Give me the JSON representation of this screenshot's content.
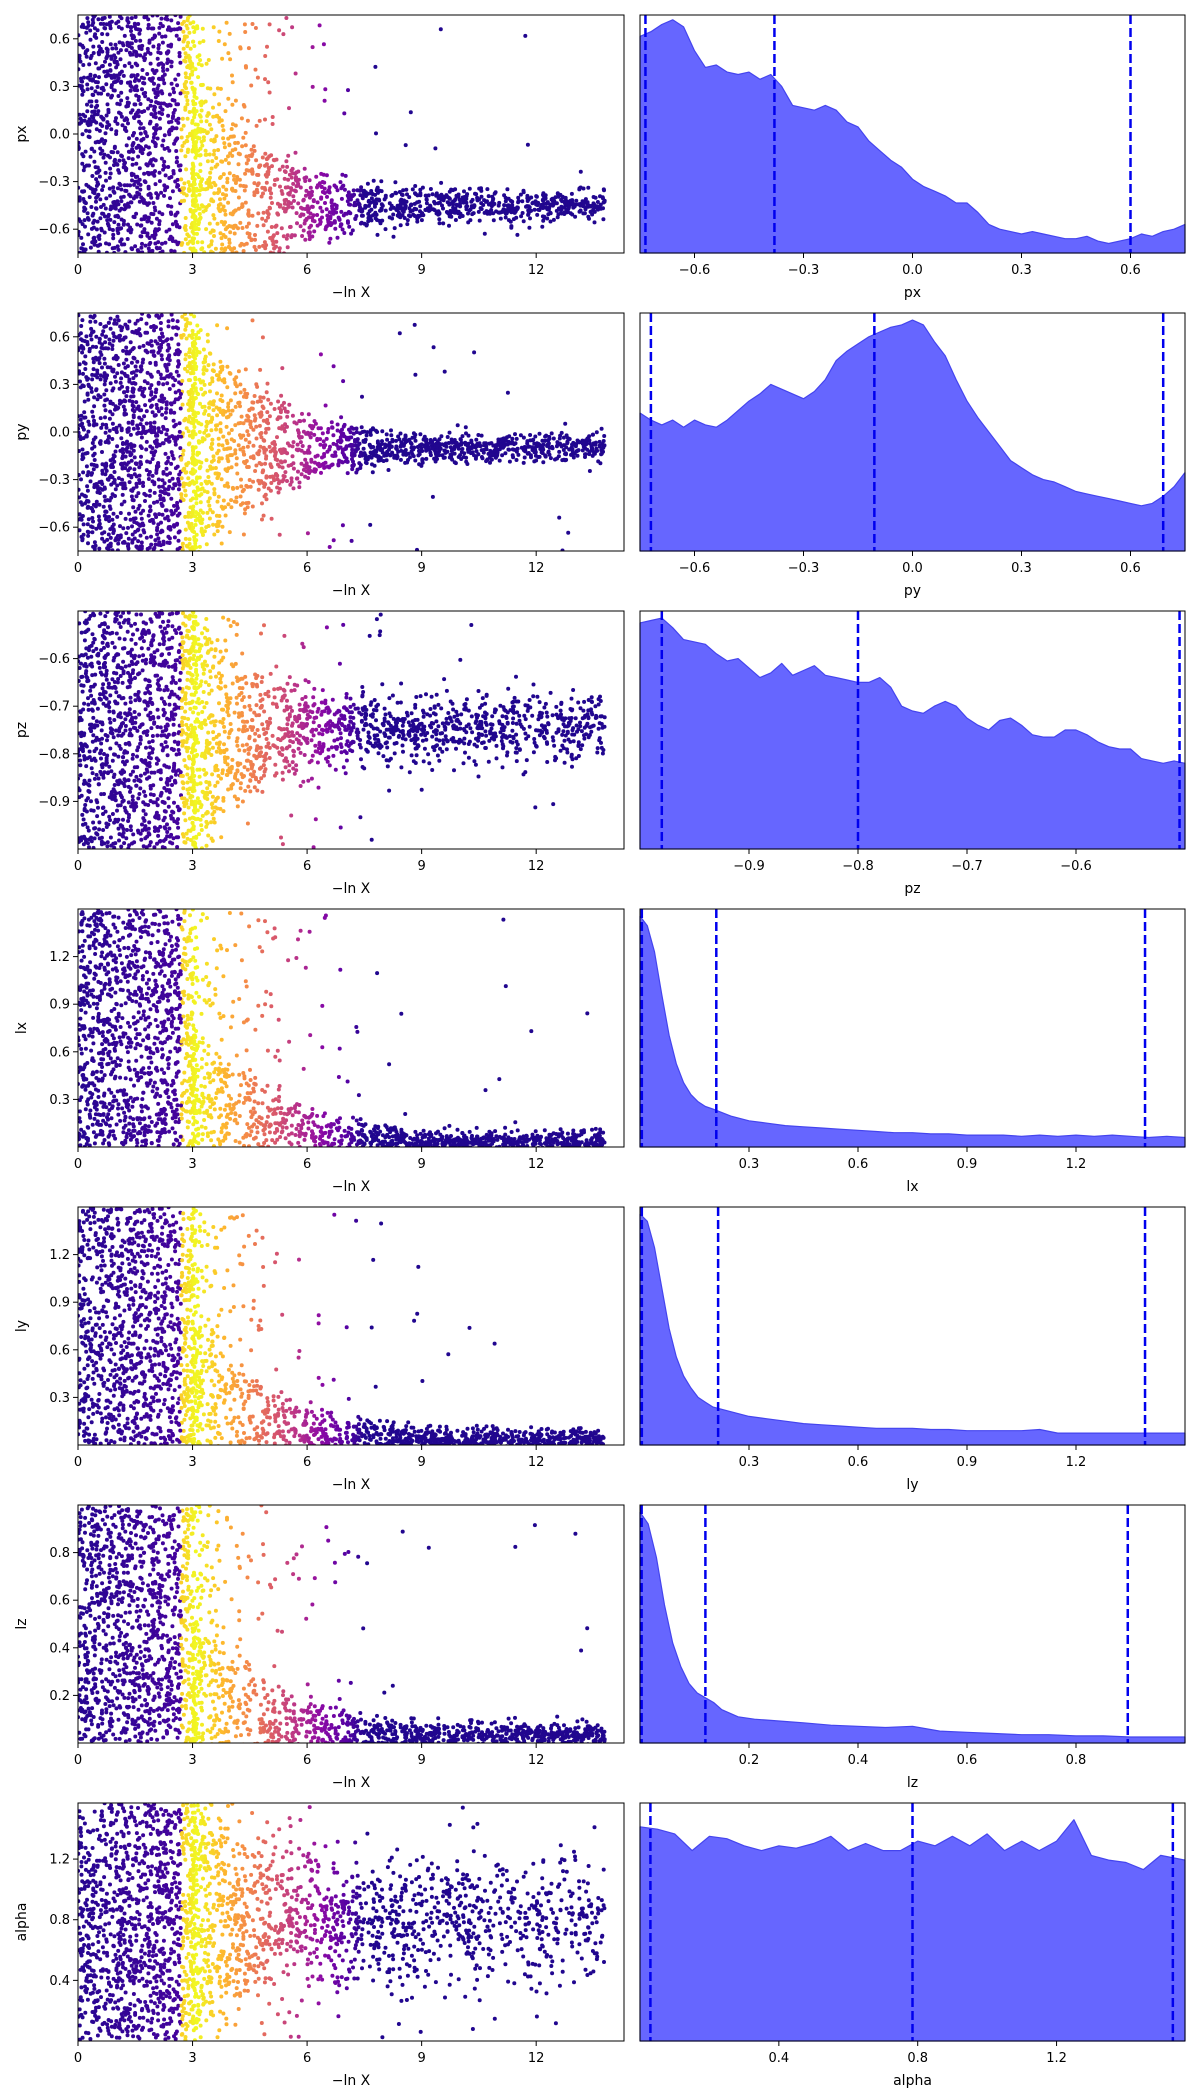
{
  "figure": {
    "description_free": true
  },
  "chart_data": [
    {
      "type": "scatter",
      "param": "px",
      "xlabel": "−ln X",
      "ylabel": "px",
      "xlim": [
        0,
        14.3
      ],
      "ylim": [
        -0.75,
        0.75
      ],
      "xticks": [
        0,
        3,
        6,
        9,
        12
      ],
      "yticks": [
        -0.6,
        -0.3,
        0.0,
        0.3,
        0.6
      ],
      "ytick_labels": [
        "−0.6",
        "−0.3",
        "0.0",
        "0.3",
        "0.6"
      ],
      "colormap": "plasma",
      "posterior_center": -0.45,
      "posterior_width": 0.2,
      "sample_density": "dense"
    },
    {
      "type": "area",
      "param": "px",
      "xlabel": "px",
      "xlim": [
        -0.75,
        0.75
      ],
      "xticks": [
        -0.6,
        -0.3,
        0.0,
        0.3,
        0.6
      ],
      "xtick_labels": [
        "−0.6",
        "−0.3",
        "0.0",
        "0.3",
        "0.6"
      ],
      "fill_color": "#6666ff",
      "line_color": "#4444ee",
      "quantile_color": "#0000ee",
      "quantile_lines": [
        -0.735,
        -0.38,
        0.6
      ],
      "density": {
        "x": [
          -0.75,
          -0.72,
          -0.69,
          -0.66,
          -0.63,
          -0.6,
          -0.57,
          -0.54,
          -0.51,
          -0.48,
          -0.45,
          -0.42,
          -0.39,
          -0.36,
          -0.33,
          -0.3,
          -0.27,
          -0.24,
          -0.21,
          -0.18,
          -0.15,
          -0.12,
          -0.09,
          -0.06,
          -0.03,
          0.0,
          0.03,
          0.06,
          0.09,
          0.12,
          0.15,
          0.18,
          0.21,
          0.24,
          0.27,
          0.3,
          0.33,
          0.36,
          0.39,
          0.42,
          0.45,
          0.48,
          0.51,
          0.54,
          0.57,
          0.6,
          0.63,
          0.66,
          0.69,
          0.72,
          0.75
        ],
        "y": [
          0.91,
          0.93,
          0.96,
          0.98,
          0.95,
          0.85,
          0.78,
          0.79,
          0.76,
          0.75,
          0.76,
          0.73,
          0.75,
          0.7,
          0.62,
          0.61,
          0.6,
          0.62,
          0.6,
          0.55,
          0.53,
          0.47,
          0.43,
          0.39,
          0.36,
          0.31,
          0.28,
          0.26,
          0.24,
          0.21,
          0.21,
          0.17,
          0.12,
          0.1,
          0.09,
          0.08,
          0.09,
          0.08,
          0.07,
          0.06,
          0.06,
          0.07,
          0.05,
          0.04,
          0.05,
          0.06,
          0.08,
          0.07,
          0.09,
          0.1,
          0.12
        ]
      }
    },
    {
      "type": "scatter",
      "param": "py",
      "xlabel": "−ln X",
      "ylabel": "py",
      "xlim": [
        0,
        14.3
      ],
      "ylim": [
        -0.75,
        0.75
      ],
      "xticks": [
        0,
        3,
        6,
        9,
        12
      ],
      "yticks": [
        -0.6,
        -0.3,
        0.0,
        0.3,
        0.6
      ],
      "ytick_labels": [
        "−0.6",
        "−0.3",
        "0.0",
        "0.3",
        "0.6"
      ],
      "colormap": "plasma",
      "posterior_center": -0.1,
      "posterior_width": 0.16,
      "sample_density": "dense"
    },
    {
      "type": "area",
      "param": "py",
      "xlabel": "py",
      "xlim": [
        -0.75,
        0.75
      ],
      "xticks": [
        -0.6,
        -0.3,
        0.0,
        0.3,
        0.6
      ],
      "xtick_labels": [
        "−0.6",
        "−0.3",
        "0.0",
        "0.3",
        "0.6"
      ],
      "fill_color": "#6666ff",
      "line_color": "#4444ee",
      "quantile_color": "#0000ee",
      "quantile_lines": [
        -0.72,
        -0.105,
        0.69
      ],
      "density": {
        "x": [
          -0.75,
          -0.72,
          -0.69,
          -0.66,
          -0.63,
          -0.6,
          -0.57,
          -0.54,
          -0.51,
          -0.48,
          -0.45,
          -0.42,
          -0.39,
          -0.36,
          -0.33,
          -0.3,
          -0.27,
          -0.24,
          -0.21,
          -0.18,
          -0.15,
          -0.12,
          -0.09,
          -0.06,
          -0.03,
          0.0,
          0.03,
          0.06,
          0.09,
          0.12,
          0.15,
          0.18,
          0.21,
          0.24,
          0.27,
          0.3,
          0.33,
          0.36,
          0.39,
          0.42,
          0.45,
          0.48,
          0.51,
          0.54,
          0.57,
          0.6,
          0.63,
          0.66,
          0.69,
          0.72,
          0.75
        ],
        "y": [
          0.58,
          0.55,
          0.53,
          0.55,
          0.52,
          0.55,
          0.53,
          0.52,
          0.55,
          0.59,
          0.63,
          0.66,
          0.7,
          0.68,
          0.66,
          0.64,
          0.67,
          0.72,
          0.8,
          0.84,
          0.87,
          0.9,
          0.92,
          0.94,
          0.95,
          0.97,
          0.95,
          0.88,
          0.82,
          0.72,
          0.63,
          0.56,
          0.5,
          0.44,
          0.38,
          0.35,
          0.32,
          0.3,
          0.29,
          0.27,
          0.25,
          0.24,
          0.23,
          0.22,
          0.21,
          0.2,
          0.19,
          0.2,
          0.23,
          0.27,
          0.33
        ]
      }
    },
    {
      "type": "scatter",
      "param": "pz",
      "xlabel": "−ln X",
      "ylabel": "pz",
      "xlim": [
        0,
        14.3
      ],
      "ylim": [
        -1.0,
        -0.5
      ],
      "xticks": [
        0,
        3,
        6,
        9,
        12
      ],
      "yticks": [
        -0.9,
        -0.8,
        -0.7,
        -0.6
      ],
      "ytick_labels": [
        "−0.9",
        "−0.8",
        "−0.7",
        "−0.6"
      ],
      "colormap": "plasma",
      "posterior_center": -0.75,
      "posterior_width": 0.15,
      "sample_density": "dense"
    },
    {
      "type": "area",
      "param": "pz",
      "xlabel": "pz",
      "xlim": [
        -1.0,
        -0.5
      ],
      "xticks": [
        -0.9,
        -0.8,
        -0.7,
        -0.6
      ],
      "xtick_labels": [
        "−0.9",
        "−0.8",
        "−0.7",
        "−0.6"
      ],
      "fill_color": "#6666ff",
      "line_color": "#4444ee",
      "quantile_color": "#0000ee",
      "quantile_lines": [
        -0.98,
        -0.8,
        -0.505
      ],
      "density": {
        "x": [
          -1.0,
          -0.99,
          -0.98,
          -0.97,
          -0.96,
          -0.95,
          -0.94,
          -0.93,
          -0.92,
          -0.91,
          -0.9,
          -0.89,
          -0.88,
          -0.87,
          -0.86,
          -0.85,
          -0.84,
          -0.83,
          -0.82,
          -0.81,
          -0.8,
          -0.79,
          -0.78,
          -0.77,
          -0.76,
          -0.75,
          -0.74,
          -0.73,
          -0.72,
          -0.71,
          -0.7,
          -0.69,
          -0.68,
          -0.67,
          -0.66,
          -0.65,
          -0.64,
          -0.63,
          -0.62,
          -0.61,
          -0.6,
          -0.59,
          -0.58,
          -0.57,
          -0.56,
          -0.55,
          -0.54,
          -0.53,
          -0.52,
          -0.51,
          -0.5
        ],
        "y": [
          0.95,
          0.96,
          0.97,
          0.93,
          0.88,
          0.87,
          0.86,
          0.82,
          0.79,
          0.8,
          0.76,
          0.72,
          0.74,
          0.78,
          0.73,
          0.75,
          0.77,
          0.73,
          0.72,
          0.71,
          0.7,
          0.7,
          0.72,
          0.68,
          0.6,
          0.58,
          0.57,
          0.6,
          0.62,
          0.6,
          0.55,
          0.52,
          0.5,
          0.54,
          0.55,
          0.52,
          0.48,
          0.47,
          0.47,
          0.5,
          0.5,
          0.48,
          0.45,
          0.43,
          0.42,
          0.42,
          0.38,
          0.37,
          0.36,
          0.37,
          0.36
        ]
      }
    },
    {
      "type": "scatter",
      "param": "lx",
      "xlabel": "−ln X",
      "ylabel": "lx",
      "xlim": [
        0,
        14.3
      ],
      "ylim": [
        0.0,
        1.5
      ],
      "xticks": [
        0,
        3,
        6,
        9,
        12
      ],
      "yticks": [
        0.3,
        0.6,
        0.9,
        1.2
      ],
      "ytick_labels": [
        "0.3",
        "0.6",
        "0.9",
        "1.2"
      ],
      "colormap": "plasma",
      "posterior_center": 0.03,
      "posterior_width": 0.12,
      "sample_density": "dense"
    },
    {
      "type": "area",
      "param": "lx",
      "xlabel": "lx",
      "xlim": [
        0.0,
        1.5
      ],
      "xticks": [
        0.3,
        0.6,
        0.9,
        1.2
      ],
      "xtick_labels": [
        "0.3",
        "0.6",
        "0.9",
        "1.2"
      ],
      "fill_color": "#6666ff",
      "line_color": "#4444ee",
      "quantile_color": "#0000ee",
      "quantile_lines": [
        0.005,
        0.21,
        1.39
      ],
      "density": {
        "x": [
          0.0,
          0.02,
          0.04,
          0.06,
          0.08,
          0.1,
          0.12,
          0.14,
          0.16,
          0.18,
          0.2,
          0.25,
          0.3,
          0.35,
          0.4,
          0.45,
          0.5,
          0.55,
          0.6,
          0.65,
          0.7,
          0.75,
          0.8,
          0.85,
          0.9,
          0.95,
          1.0,
          1.05,
          1.1,
          1.15,
          1.2,
          1.25,
          1.3,
          1.35,
          1.4,
          1.45,
          1.5
        ],
        "y": [
          0.97,
          0.93,
          0.82,
          0.64,
          0.47,
          0.35,
          0.27,
          0.22,
          0.19,
          0.17,
          0.16,
          0.13,
          0.11,
          0.1,
          0.09,
          0.085,
          0.08,
          0.075,
          0.07,
          0.065,
          0.06,
          0.06,
          0.055,
          0.055,
          0.05,
          0.05,
          0.05,
          0.045,
          0.05,
          0.045,
          0.05,
          0.045,
          0.05,
          0.045,
          0.04,
          0.045,
          0.04
        ]
      }
    },
    {
      "type": "scatter",
      "param": "ly",
      "xlabel": "−ln X",
      "ylabel": "ly",
      "xlim": [
        0,
        14.3
      ],
      "ylim": [
        0.0,
        1.5
      ],
      "xticks": [
        0,
        3,
        6,
        9,
        12
      ],
      "yticks": [
        0.3,
        0.6,
        0.9,
        1.2
      ],
      "ytick_labels": [
        "0.3",
        "0.6",
        "0.9",
        "1.2"
      ],
      "colormap": "plasma",
      "posterior_center": 0.03,
      "posterior_width": 0.12,
      "sample_density": "dense"
    },
    {
      "type": "area",
      "param": "ly",
      "xlabel": "ly",
      "xlim": [
        0.0,
        1.5
      ],
      "xticks": [
        0.3,
        0.6,
        0.9,
        1.2
      ],
      "xtick_labels": [
        "0.3",
        "0.6",
        "0.9",
        "1.2"
      ],
      "fill_color": "#6666ff",
      "line_color": "#4444ee",
      "quantile_color": "#0000ee",
      "quantile_lines": [
        0.005,
        0.215,
        1.39
      ],
      "density": {
        "x": [
          0.0,
          0.02,
          0.04,
          0.06,
          0.08,
          0.1,
          0.12,
          0.14,
          0.16,
          0.18,
          0.2,
          0.25,
          0.3,
          0.35,
          0.4,
          0.45,
          0.5,
          0.55,
          0.6,
          0.65,
          0.7,
          0.75,
          0.8,
          0.85,
          0.9,
          0.95,
          1.0,
          1.05,
          1.1,
          1.15,
          1.2,
          1.25,
          1.3,
          1.35,
          1.4,
          1.45,
          1.5
        ],
        "y": [
          0.97,
          0.94,
          0.83,
          0.66,
          0.49,
          0.37,
          0.29,
          0.24,
          0.2,
          0.18,
          0.16,
          0.14,
          0.12,
          0.11,
          0.1,
          0.09,
          0.085,
          0.08,
          0.075,
          0.07,
          0.07,
          0.07,
          0.065,
          0.065,
          0.06,
          0.06,
          0.06,
          0.06,
          0.065,
          0.05,
          0.05,
          0.05,
          0.05,
          0.05,
          0.05,
          0.05,
          0.05
        ]
      }
    },
    {
      "type": "scatter",
      "param": "lz",
      "xlabel": "−ln X",
      "ylabel": "lz",
      "xlim": [
        0,
        14.3
      ],
      "ylim": [
        0.0,
        1.0
      ],
      "xticks": [
        0,
        3,
        6,
        9,
        12
      ],
      "yticks": [
        0.2,
        0.4,
        0.6,
        0.8
      ],
      "ytick_labels": [
        "0.2",
        "0.4",
        "0.6",
        "0.8"
      ],
      "colormap": "plasma",
      "posterior_center": 0.03,
      "posterior_width": 0.1,
      "sample_density": "dense"
    },
    {
      "type": "area",
      "param": "lz",
      "xlabel": "lz",
      "xlim": [
        0.0,
        1.0
      ],
      "xticks": [
        0.2,
        0.4,
        0.6,
        0.8
      ],
      "xtick_labels": [
        "0.2",
        "0.4",
        "0.6",
        "0.8"
      ],
      "fill_color": "#6666ff",
      "line_color": "#4444ee",
      "quantile_color": "#0000ee",
      "quantile_lines": [
        0.003,
        0.12,
        0.895
      ],
      "density": {
        "x": [
          0.0,
          0.015,
          0.03,
          0.045,
          0.06,
          0.075,
          0.09,
          0.105,
          0.12,
          0.135,
          0.15,
          0.18,
          0.21,
          0.24,
          0.27,
          0.3,
          0.35,
          0.4,
          0.45,
          0.5,
          0.55,
          0.6,
          0.65,
          0.7,
          0.75,
          0.8,
          0.85,
          0.9,
          0.95,
          1.0
        ],
        "y": [
          0.97,
          0.92,
          0.78,
          0.58,
          0.42,
          0.32,
          0.25,
          0.21,
          0.19,
          0.17,
          0.14,
          0.11,
          0.1,
          0.095,
          0.09,
          0.085,
          0.075,
          0.07,
          0.065,
          0.07,
          0.05,
          0.045,
          0.04,
          0.035,
          0.035,
          0.03,
          0.03,
          0.025,
          0.025,
          0.025
        ]
      }
    },
    {
      "type": "scatter",
      "param": "alpha",
      "xlabel": "−ln X",
      "ylabel": "alpha",
      "xlim": [
        0,
        14.3
      ],
      "ylim": [
        0.0,
        1.57
      ],
      "xticks": [
        0,
        3,
        6,
        9,
        12
      ],
      "yticks": [
        0.4,
        0.8,
        1.2
      ],
      "ytick_labels": [
        "0.4",
        "0.8",
        "1.2"
      ],
      "colormap": "plasma",
      "posterior_center": 0.8,
      "posterior_width": 0.9,
      "sample_density": "dense"
    },
    {
      "type": "area",
      "param": "alpha",
      "xlabel": "alpha",
      "xlim": [
        0.0,
        1.57
      ],
      "xticks": [
        0.4,
        0.8,
        1.2
      ],
      "xtick_labels": [
        "0.4",
        "0.8",
        "1.2"
      ],
      "fill_color": "#6666ff",
      "line_color": "#4444ee",
      "quantile_color": "#0000ee",
      "quantile_lines": [
        0.03,
        0.785,
        1.535
      ],
      "density": {
        "x": [
          0.0,
          0.05,
          0.1,
          0.15,
          0.2,
          0.25,
          0.3,
          0.35,
          0.4,
          0.45,
          0.5,
          0.55,
          0.6,
          0.65,
          0.7,
          0.75,
          0.8,
          0.85,
          0.9,
          0.95,
          1.0,
          1.05,
          1.1,
          1.15,
          1.2,
          1.25,
          1.3,
          1.35,
          1.4,
          1.45,
          1.5,
          1.57
        ],
        "y": [
          0.9,
          0.89,
          0.87,
          0.8,
          0.86,
          0.85,
          0.82,
          0.8,
          0.82,
          0.81,
          0.83,
          0.86,
          0.8,
          0.83,
          0.8,
          0.8,
          0.84,
          0.82,
          0.86,
          0.82,
          0.87,
          0.8,
          0.84,
          0.8,
          0.84,
          0.93,
          0.78,
          0.76,
          0.75,
          0.72,
          0.78,
          0.76
        ]
      }
    }
  ]
}
